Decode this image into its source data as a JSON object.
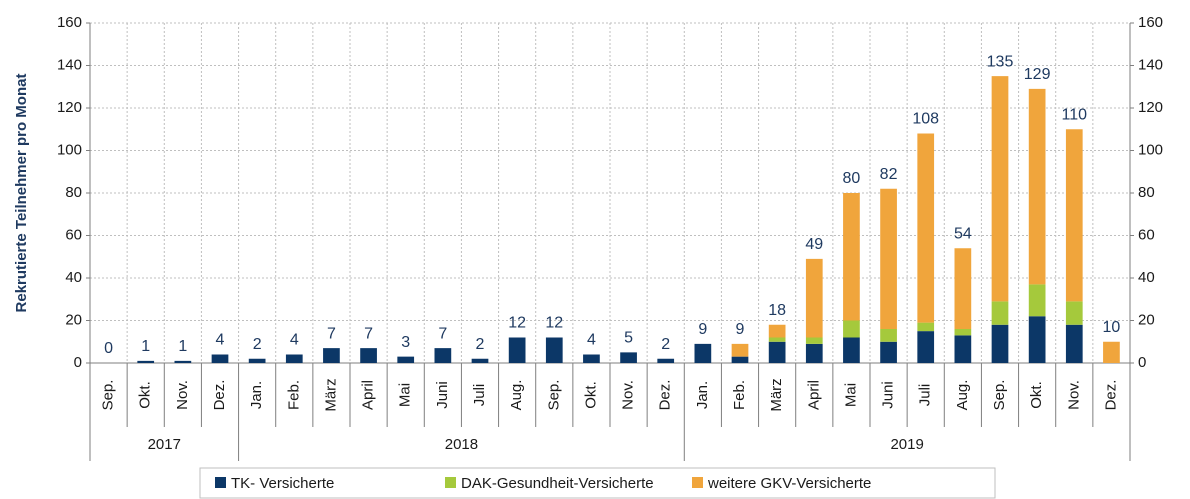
{
  "chart_data": {
    "type": "stacked_bar",
    "y_label": "Rekrutierte Teilnehmer pro Monat",
    "categories": [
      "Sep.",
      "Okt.",
      "Nov.",
      "Dez.",
      "Jan.",
      "Feb.",
      "März",
      "April",
      "Mai",
      "Juni",
      "Juli",
      "Aug.",
      "Sep.",
      "Okt.",
      "Nov.",
      "Dez.",
      "Jan.",
      "Feb.",
      "März",
      "April",
      "Mai",
      "Juni",
      "Juli",
      "Aug.",
      "Sep.",
      "Okt.",
      "Nov.",
      "Dez."
    ],
    "year_groups": [
      {
        "label": "2017",
        "count": 4
      },
      {
        "label": "2018",
        "count": 12
      },
      {
        "label": "2019",
        "count": 12
      }
    ],
    "series": [
      {
        "name": "TK- Versicherte",
        "color": "#0c3767",
        "values": [
          0,
          1,
          1,
          4,
          2,
          4,
          7,
          7,
          3,
          7,
          2,
          12,
          12,
          4,
          5,
          2,
          9,
          3,
          10,
          9,
          12,
          10,
          15,
          13,
          18,
          22,
          18,
          0
        ]
      },
      {
        "name": "DAK-Gesundheit-Versicherte",
        "color": "#a5c93c",
        "values": [
          0,
          0,
          0,
          0,
          0,
          0,
          0,
          0,
          0,
          0,
          0,
          0,
          0,
          0,
          0,
          0,
          0,
          0,
          2,
          3,
          8,
          6,
          4,
          3,
          11,
          15,
          11,
          0
        ]
      },
      {
        "name": "weitere GKV-Versicherte",
        "color": "#f0a53c",
        "values": [
          0,
          0,
          0,
          0,
          0,
          0,
          0,
          0,
          0,
          0,
          0,
          0,
          0,
          0,
          0,
          0,
          0,
          6,
          6,
          37,
          60,
          66,
          89,
          38,
          106,
          92,
          81,
          10
        ]
      }
    ],
    "totals": [
      0,
      1,
      1,
      4,
      2,
      4,
      7,
      7,
      3,
      7,
      2,
      12,
      12,
      4,
      5,
      2,
      9,
      9,
      18,
      49,
      80,
      82,
      108,
      54,
      135,
      129,
      110,
      10
    ],
    "ylim": [
      0,
      160
    ],
    "yticks": [
      0,
      20,
      40,
      60,
      80,
      100,
      120,
      140,
      160
    ],
    "grid": true
  }
}
